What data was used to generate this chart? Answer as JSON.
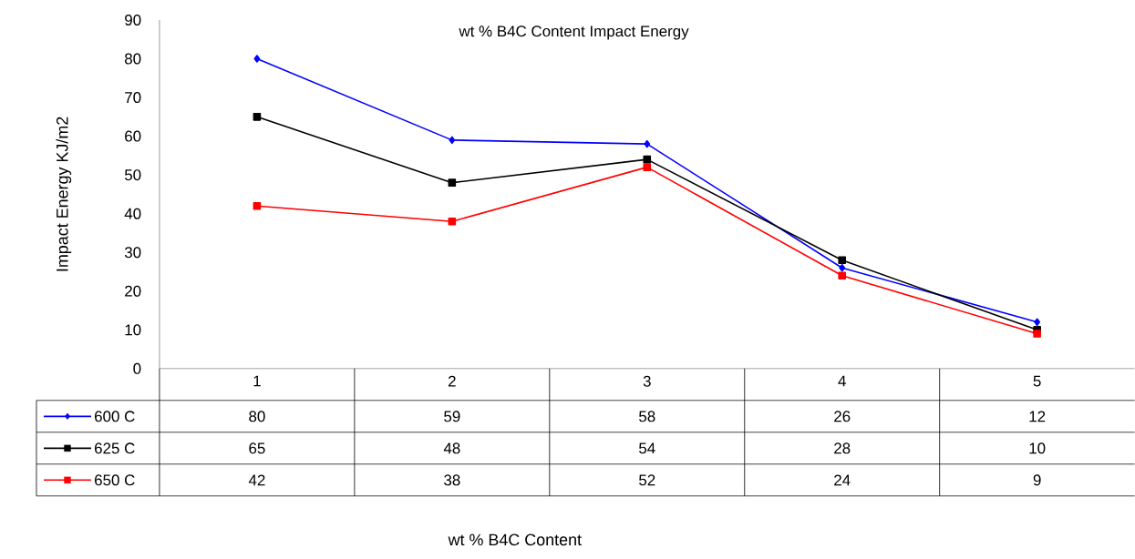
{
  "chart_data": {
    "type": "line",
    "title": "wt % B4C Content  Impact Energy",
    "annotations": [
      "wt % B4C Content"
    ],
    "ylabel": "Impact Energy  KJ/m2",
    "categories": [
      "1",
      "2",
      "3",
      "4",
      "5"
    ],
    "series": [
      {
        "name": "600 C",
        "color": "#0000ff",
        "marker": "diamond",
        "values": [
          80,
          59,
          58,
          26,
          12
        ]
      },
      {
        "name": "625 C",
        "color": "#000000",
        "marker": "square",
        "values": [
          65,
          48,
          54,
          28,
          10
        ]
      },
      {
        "name": "650 C",
        "color": "#ff0000",
        "marker": "square",
        "values": [
          42,
          38,
          52,
          24,
          9
        ]
      }
    ],
    "ylim": [
      0,
      90
    ],
    "yticks": [
      0,
      10,
      20,
      30,
      40,
      50,
      60,
      70,
      80,
      90
    ],
    "data_labels": true,
    "legend": "bottom"
  }
}
